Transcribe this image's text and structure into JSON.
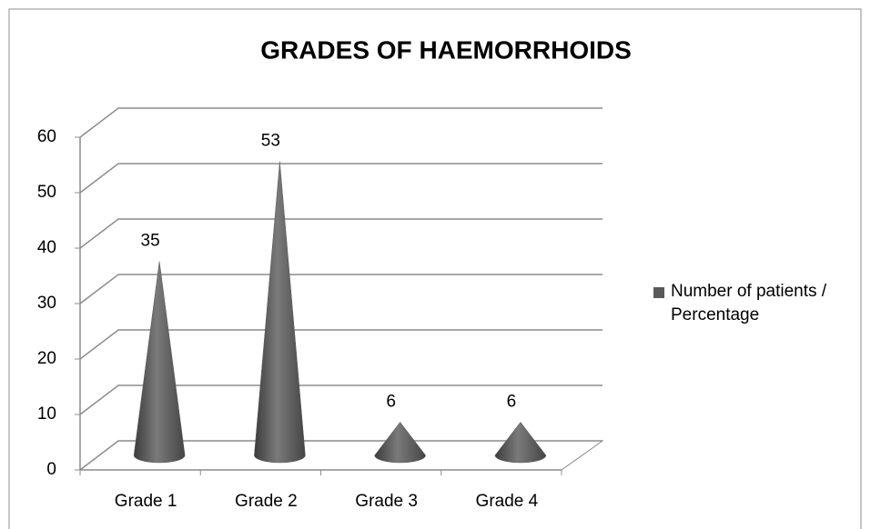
{
  "chart_data": {
    "type": "bar3d-cone",
    "title": "GRADES  OF  HAEMORRHOIDS",
    "categories": [
      "Grade 1",
      "Grade 2",
      "Grade 3",
      "Grade 4"
    ],
    "series": [
      {
        "name": "Number of patients / Percentage",
        "color": "#595959",
        "values": [
          35,
          53,
          6,
          6
        ]
      }
    ],
    "ylim": [
      0,
      60
    ],
    "yticks": [
      0,
      10,
      20,
      30,
      40,
      50,
      60
    ],
    "grid": true,
    "legend": "right"
  }
}
